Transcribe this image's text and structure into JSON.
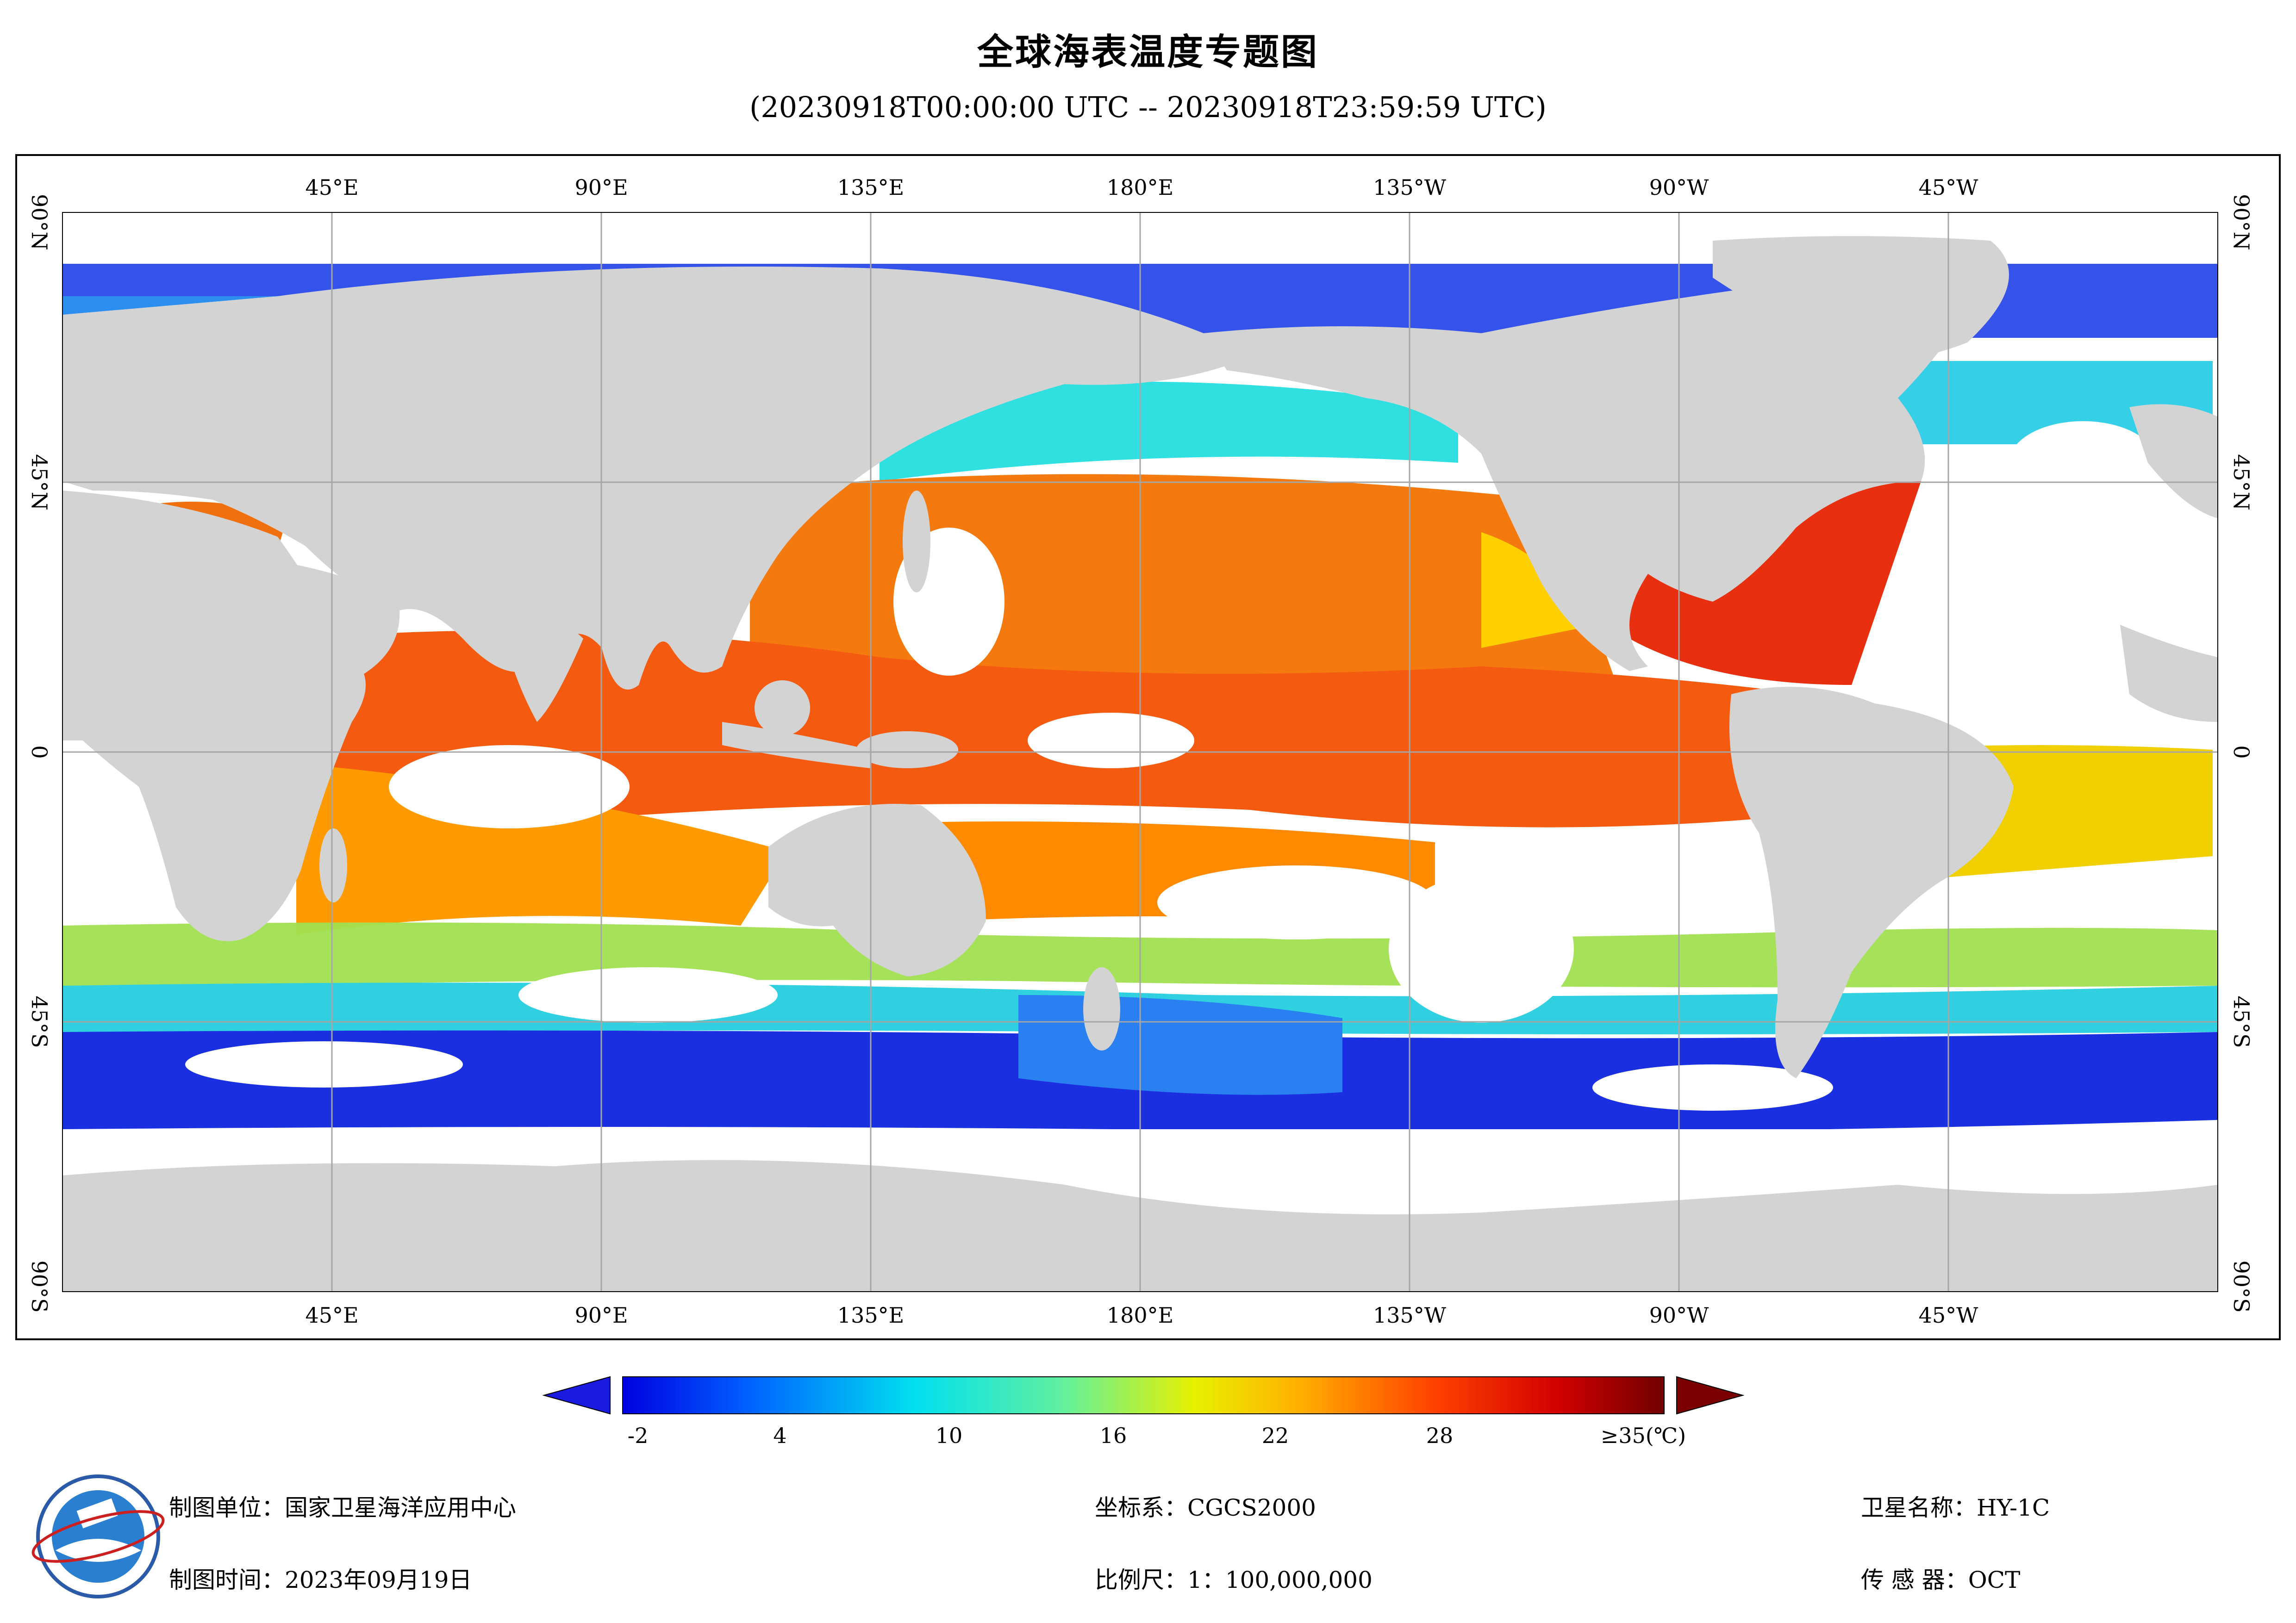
{
  "title": "全球海表温度专题图",
  "subtitle": "(20230918T00:00:00 UTC -- 20230918T23:59:59 UTC)",
  "axes": {
    "top_lon_labels": [
      "45°E",
      "90°E",
      "135°E",
      "180°E",
      "135°W",
      "90°W",
      "45°W"
    ],
    "bottom_lon_labels": [
      "45°E",
      "90°E",
      "135°E",
      "180°E",
      "135°W",
      "90°W",
      "45°W"
    ],
    "lat_labels": [
      "90°N",
      "45°N",
      "0",
      "45°S",
      "90°S"
    ]
  },
  "colorbar": {
    "tick_labels": [
      "-2",
      "4",
      "10",
      "16",
      "22",
      "28",
      "≥35(℃)"
    ],
    "min": -2,
    "max": 35,
    "left_arrow_color": "#1a1ae0",
    "right_arrow_color": "#7a0000"
  },
  "footer": {
    "producer_label": "制图单位：国家卫星海洋应用中心",
    "time_label": "制图时间：2023年09月19日",
    "crs_label": "坐标系：CGCS2000",
    "scale_label": "比例尺：1：100,000,000",
    "satellite_label": "卫星名称：HY-1C",
    "sensor_label": "传 感 器：OCT"
  },
  "colors": {
    "land": "#d3d3d3",
    "grid": "#a6a6a6",
    "cold": "#0000d0",
    "warm": "#f05a00",
    "hot": "#d42000"
  }
}
